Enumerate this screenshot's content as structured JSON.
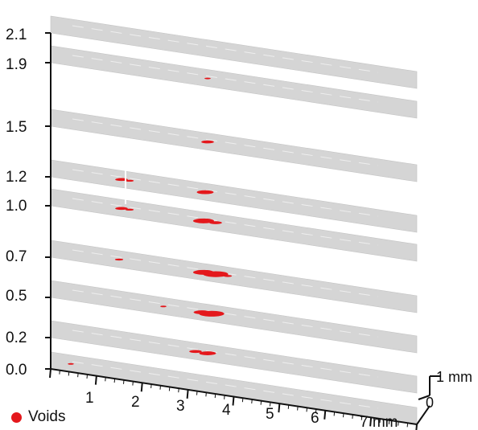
{
  "figure": {
    "z_labels": [
      "2.1",
      "1.9",
      "1.5",
      "1.2",
      "1.0",
      "0.7",
      "0.5",
      "0.2",
      "0.0"
    ],
    "x_labels": [
      "1",
      "2",
      "3",
      "4",
      "5",
      "6",
      "7 mm"
    ],
    "depth_labels": [
      "1 mm",
      "0"
    ],
    "legend": {
      "label": "Voids",
      "color": "#e4181c"
    },
    "slice_color": "#d5d5d5",
    "axis_color": "#111111"
  }
}
